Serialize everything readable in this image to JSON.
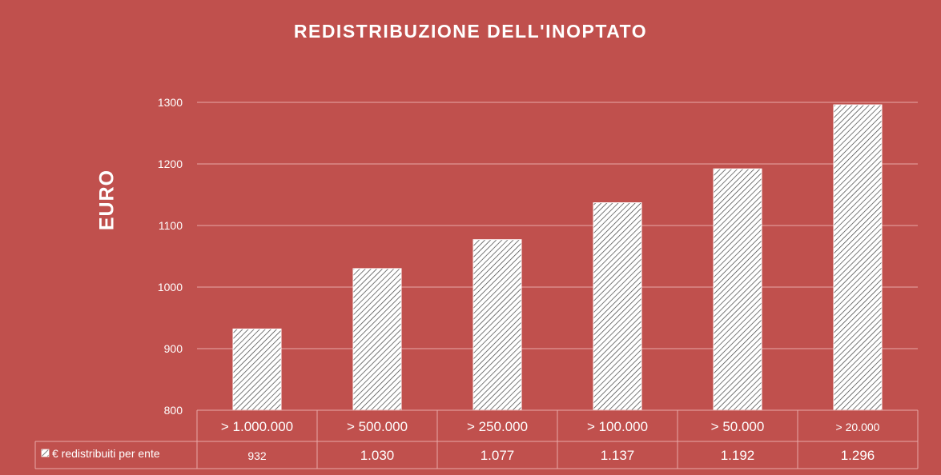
{
  "chart_data": {
    "type": "bar",
    "title": "REDISTRIBUZIONE  DELL'INOPTATO",
    "ylabel": "EURO",
    "xlabel": "",
    "categories": [
      ">  1.000.000",
      ">  500.000",
      ">  250.000",
      ">  100.000",
      ">  50.000",
      "> 20.000"
    ],
    "series": [
      {
        "name": "€ redistribuiti per ente",
        "values": [
          932,
          1030,
          1077,
          1137,
          1192,
          1296
        ],
        "labels": [
          "932",
          "1.030",
          "1.077",
          "1.137",
          "1.192",
          "1.296"
        ]
      }
    ],
    "ylim": [
      800,
      1300
    ],
    "yticks": [
      "800",
      "900",
      "1000",
      "1100",
      "1200",
      "1300"
    ],
    "grid": true,
    "legend": "data-table",
    "colors": {
      "background": "#c0504d",
      "bar": "#ffffff",
      "hatch": "#404040",
      "grid": "#e8a9a7"
    }
  }
}
